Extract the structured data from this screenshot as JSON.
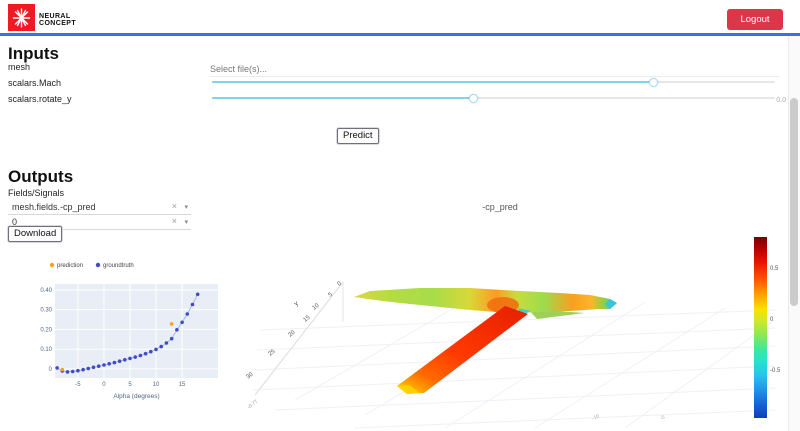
{
  "header": {
    "brand_line1": "NEURAL",
    "brand_line2": "CONCEPT",
    "logout_label": "Logout",
    "accent_blue": "#3a6fe6",
    "brand_red": "#ee1b24",
    "logout_red": "#dd3649"
  },
  "inputs": {
    "title": "Inputs",
    "mesh_label": "mesh",
    "file_placeholder": "Select file(s)...",
    "mach_label": "scalars.Mach",
    "mach_percent": 78.5,
    "rotate_label": "scalars.rotate_y",
    "rotate_percent": 46.5,
    "rotate_value": "0.0",
    "predict_label": "Predict"
  },
  "outputs": {
    "title": "Outputs",
    "fields_label": "Fields/Signals",
    "field_select_value": "mesh.fields.-cp_pred",
    "index_select_value": "0",
    "download_label": "Download"
  },
  "chart_data": [
    {
      "type": "scatter",
      "title": "",
      "xlabel": "Alpha (degrees)",
      "ylabel": "",
      "xlim": [
        -9.4,
        21.9
      ],
      "ylim": [
        -0.046,
        0.43
      ],
      "x_ticks": [
        -5,
        0,
        5,
        10,
        15
      ],
      "x_tick_labels": [
        "-5",
        "0",
        "5",
        "10",
        "15"
      ],
      "y_ticks": [
        0,
        0.1,
        0.2,
        0.3,
        0.4
      ],
      "y_tick_labels": [
        "0",
        "0.10",
        "0.20",
        "0.30",
        "0.40"
      ],
      "plot_bg": "#e8edf6",
      "grid_color": "#ffffff",
      "legend_position": "top",
      "series": [
        {
          "name": "prediction",
          "mode": "markers",
          "color": "#ff9d1c",
          "x": [
            -8,
            13
          ],
          "y": [
            -0.004,
            0.228
          ]
        },
        {
          "name": "groundtruth",
          "mode": "lines+markers",
          "color": "#3f4dc5",
          "line_color": "#aab8e8",
          "x": [
            -9,
            -8,
            -7,
            -6,
            -5,
            -4,
            -3,
            -2,
            -1,
            0,
            1,
            2,
            3,
            4,
            5,
            6,
            7,
            8,
            9,
            10,
            11,
            12,
            13,
            14,
            15,
            16,
            17,
            18
          ],
          "y": [
            0.005,
            -0.01,
            -0.015,
            -0.013,
            -0.009,
            -0.004,
            0.002,
            0.008,
            0.014,
            0.02,
            0.026,
            0.032,
            0.039,
            0.046,
            0.053,
            0.06,
            0.068,
            0.077,
            0.087,
            0.099,
            0.113,
            0.131,
            0.153,
            0.198,
            0.236,
            0.278,
            0.326,
            0.378
          ]
        }
      ]
    },
    {
      "type": "mesh3d",
      "title": "-cp_pred",
      "scene": {
        "y_axis_label": "y",
        "y_axis_ticks": [
          "0",
          "5",
          "10",
          "15",
          "20",
          "25",
          "30"
        ],
        "x_axis_ticks": [
          "-10",
          "-5"
        ],
        "axis_end_label": "-0.77"
      },
      "colorbar": {
        "colormap": "jet",
        "tick_labels": [
          "0.5",
          "0",
          "-0.5"
        ],
        "tick_values": [
          0.5,
          0,
          -0.5
        ]
      }
    }
  ]
}
